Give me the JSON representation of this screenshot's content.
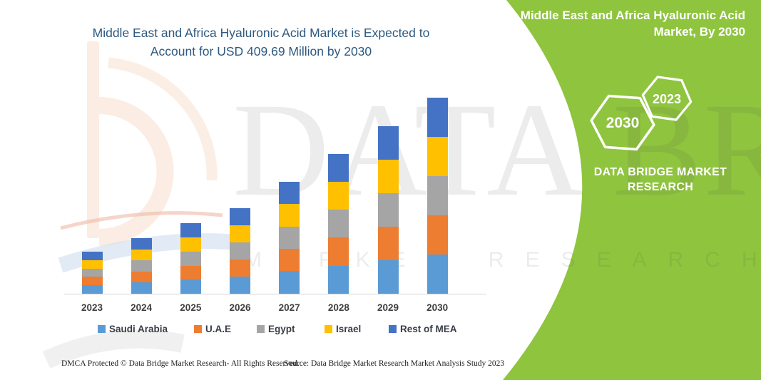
{
  "chart": {
    "title_line1": "Middle East and Africa Hyaluronic Acid Market is Expected to",
    "title_line2": "Account for USD 409.69 Million by 2030",
    "title_color": "#2E597F"
  },
  "chart_data": {
    "type": "bar",
    "stacked": true,
    "title": "Middle East and Africa Hyaluronic Acid Market is Expected to Account for USD 409.69 Million by 2030",
    "unit": "USD Million",
    "categories": [
      "2023",
      "2024",
      "2025",
      "2026",
      "2027",
      "2028",
      "2029",
      "2030"
    ],
    "series": [
      {
        "name": "Saudi Arabia",
        "color": "#5B9BD5",
        "values": [
          17.52,
          23.16,
          29.4,
          35.62,
          46.9,
          58.48,
          70.06,
          81.94
        ]
      },
      {
        "name": "U.A.E",
        "color": "#ED7D31",
        "values": [
          17.52,
          23.16,
          29.4,
          35.62,
          46.9,
          58.48,
          70.06,
          81.94
        ]
      },
      {
        "name": "Egypt",
        "color": "#A5A5A5",
        "values": [
          17.52,
          23.16,
          29.4,
          35.62,
          46.9,
          58.48,
          70.06,
          81.94
        ]
      },
      {
        "name": "Israel",
        "color": "#FFC000",
        "values": [
          17.52,
          23.16,
          29.4,
          35.62,
          46.9,
          58.48,
          70.06,
          81.94
        ]
      },
      {
        "name": "Rest of MEA",
        "color": "#4472C4",
        "values": [
          17.52,
          23.16,
          29.4,
          35.62,
          46.9,
          58.48,
          70.06,
          81.93
        ]
      }
    ],
    "totals_usd_million": [
      87.6,
      115.8,
      147.0,
      178.1,
      234.5,
      292.4,
      350.3,
      409.69
    ],
    "xlabel": "",
    "ylabel": "",
    "ylim": [
      0,
      420
    ],
    "grid": false,
    "y_axis_shown": false,
    "legend_position": "bottom"
  },
  "side_panel": {
    "background": "#8FC43E",
    "title_line1": "Middle East and Africa Hyaluronic Acid",
    "title_line2": "Market, By 2030",
    "hexagon_large_label": "2030",
    "hexagon_small_label": "2023",
    "brand_line1": "DATA BRIDGE MARKET",
    "brand_line2": "RESEARCH"
  },
  "watermark": {
    "brand_text": "DATA BRIDGE",
    "subtext": "MARKET RESEARCH"
  },
  "footer": {
    "dmca": "DMCA Protected © Data Bridge Market Research-  All Rights Reserved.",
    "source": "Source: Data Bridge Market Research  Market Analysis Study 2023"
  }
}
